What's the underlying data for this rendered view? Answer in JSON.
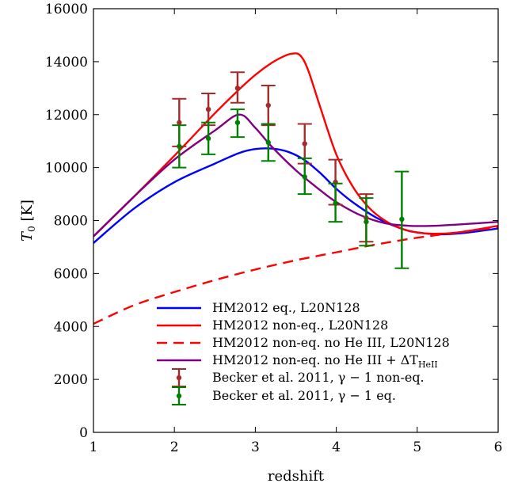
{
  "chart_data": {
    "type": "line",
    "xlabel": "redshift",
    "ylabel_main": "T",
    "ylabel_sub": "0",
    "ylabel_unit": " [K]",
    "xlim": [
      1,
      6
    ],
    "ylim": [
      0,
      16000
    ],
    "xticks": [
      "1",
      "2",
      "3",
      "4",
      "5",
      "6"
    ],
    "yticks": [
      "0",
      "2000",
      "4000",
      "6000",
      "8000",
      "10000",
      "12000",
      "14000",
      "16000"
    ],
    "grid": false,
    "legend_position": "lower-center",
    "series": [
      {
        "name": "HM2012 eq., L20N128",
        "color": "#0000ff",
        "dash": "solid",
        "x": [
          1.0,
          1.5,
          2.0,
          2.5,
          2.8,
          3.0,
          3.2,
          3.4,
          3.6,
          3.8,
          4.0,
          4.2,
          4.5,
          4.8,
          5.0,
          5.3,
          5.6,
          6.0
        ],
        "y": [
          7150,
          8450,
          9450,
          10150,
          10550,
          10700,
          10720,
          10600,
          10300,
          9800,
          9200,
          8700,
          8100,
          7700,
          7550,
          7480,
          7540,
          7700
        ]
      },
      {
        "name": "HM2012 non-eq., L20N128",
        "color": "#ff0000",
        "dash": "solid",
        "x": [
          1.0,
          1.5,
          2.0,
          2.5,
          2.8,
          3.0,
          3.2,
          3.35,
          3.45,
          3.55,
          3.65,
          3.8,
          4.0,
          4.2,
          4.4,
          4.6,
          4.8,
          5.0,
          5.2,
          5.5,
          6.0
        ],
        "y": [
          7400,
          8900,
          10450,
          12050,
          12950,
          13500,
          13950,
          14200,
          14300,
          14250,
          13700,
          12300,
          10500,
          9300,
          8500,
          8000,
          7700,
          7550,
          7500,
          7550,
          7800
        ]
      },
      {
        "name": "HM2012 non-eq. no He III, L20N128",
        "color": "#ff0000",
        "dash": "dashed",
        "x": [
          1.0,
          1.5,
          2.0,
          2.5,
          3.0,
          3.5,
          4.0,
          4.5,
          5.0,
          5.5,
          6.0
        ],
        "y": [
          4100,
          4800,
          5300,
          5750,
          6150,
          6500,
          6800,
          7100,
          7350,
          7550,
          7750
        ]
      },
      {
        "name": "HM2012 non-eq. no He III + ΔT",
        "name_sub": "HeII",
        "color": "#800080",
        "dash": "solid",
        "x": [
          1.0,
          1.5,
          2.0,
          2.5,
          2.8,
          3.0,
          3.2,
          3.5,
          3.8,
          4.0,
          4.3,
          4.6,
          4.9,
          5.2,
          5.5,
          6.0
        ],
        "y": [
          7400,
          8900,
          10300,
          11400,
          12000,
          11500,
          10800,
          9900,
          9150,
          8700,
          8200,
          7900,
          7800,
          7800,
          7850,
          7950
        ]
      }
    ],
    "errorbar_series": [
      {
        "name": "Becker et al. 2011, γ − 1 non-eq.",
        "color": "#a52a2a",
        "points": [
          {
            "x": 2.06,
            "y": 11700,
            "lo": 10800,
            "hi": 12600
          },
          {
            "x": 2.42,
            "y": 12200,
            "lo": 11600,
            "hi": 12800
          },
          {
            "x": 2.78,
            "y": 13000,
            "lo": 12450,
            "hi": 13600
          },
          {
            "x": 3.16,
            "y": 12350,
            "lo": 11600,
            "hi": 13100
          },
          {
            "x": 3.61,
            "y": 10900,
            "lo": 10150,
            "hi": 11650
          },
          {
            "x": 3.99,
            "y": 9450,
            "lo": 8600,
            "hi": 10300
          },
          {
            "x": 4.37,
            "y": 8100,
            "lo": 7200,
            "hi": 9000
          }
        ]
      },
      {
        "name": "Becker et al. 2011, γ − 1 eq.",
        "color": "#008000",
        "points": [
          {
            "x": 2.06,
            "y": 10800,
            "lo": 10000,
            "hi": 11600
          },
          {
            "x": 2.42,
            "y": 11100,
            "lo": 10500,
            "hi": 11700
          },
          {
            "x": 2.78,
            "y": 11700,
            "lo": 11150,
            "hi": 12200
          },
          {
            "x": 3.16,
            "y": 10950,
            "lo": 10250,
            "hi": 11650
          },
          {
            "x": 3.61,
            "y": 9650,
            "lo": 9000,
            "hi": 10350
          },
          {
            "x": 3.99,
            "y": 8650,
            "lo": 7950,
            "hi": 9400
          },
          {
            "x": 4.37,
            "y": 7950,
            "lo": 7050,
            "hi": 8850
          },
          {
            "x": 4.81,
            "y": 8050,
            "lo": 6200,
            "hi": 9850
          }
        ]
      }
    ]
  }
}
